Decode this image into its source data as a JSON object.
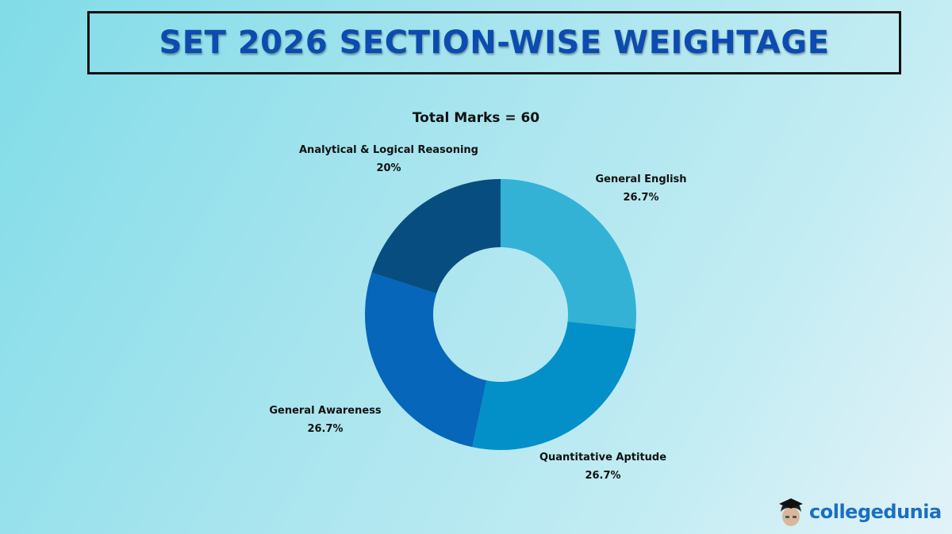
{
  "header": {
    "title": "SET 2026 SECTION-WISE WEIGHTAGE"
  },
  "chart": {
    "subtitle": "Total Marks = 60",
    "labels": [
      {
        "name": "General English",
        "value": "26.7%"
      },
      {
        "name": "Quantitative Aptitude",
        "value": "26.7%"
      },
      {
        "name": "General Awareness",
        "value": "26.7%"
      },
      {
        "name": "Analytical & Logical Reasoning",
        "value": "20%"
      }
    ]
  },
  "branding": {
    "logo_text": "collegedunia",
    "logo_icon": "student-mascot-icon"
  },
  "colors": {
    "title": "#0c4cb0",
    "general_english": "#33b2d6",
    "quantitative_aptitude": "#0390c8",
    "general_awareness": "#0566ba",
    "analytical_reasoning": "#084d80"
  },
  "chart_data": {
    "type": "pie",
    "subtype": "donut",
    "title": "SET 2026 SECTION-WISE WEIGHTAGE",
    "subtitle": "Total Marks = 60",
    "categories": [
      "General English",
      "Quantitative Aptitude",
      "General Awareness",
      "Analytical & Logical Reasoning"
    ],
    "values": [
      26.7,
      26.7,
      26.7,
      20
    ],
    "unit": "%",
    "colors": [
      "#33b2d6",
      "#0390c8",
      "#0566ba",
      "#084d80"
    ],
    "start_angle": "12 o'clock, clockwise",
    "legend": "none (direct labels)"
  }
}
